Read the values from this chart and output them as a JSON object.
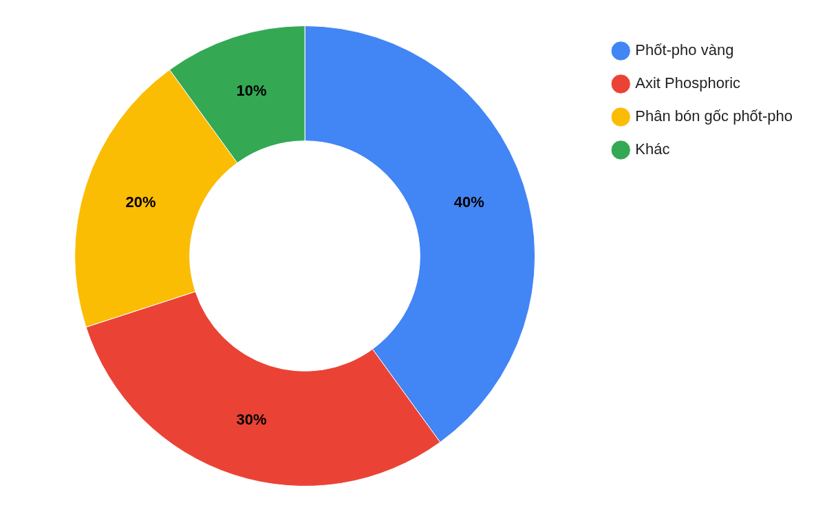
{
  "chart_data": {
    "type": "donut",
    "categories": [
      "Phốt-pho vàng",
      "Axit Phosphoric",
      "Phân bón gốc phốt-pho",
      "Khác"
    ],
    "values": [
      40,
      30,
      20,
      10
    ],
    "colors": [
      "#4285f4",
      "#ea4335",
      "#fbbc04",
      "#34a853"
    ],
    "value_labels": [
      "40%",
      "30%",
      "20%",
      "10%"
    ],
    "legend": "top right"
  }
}
